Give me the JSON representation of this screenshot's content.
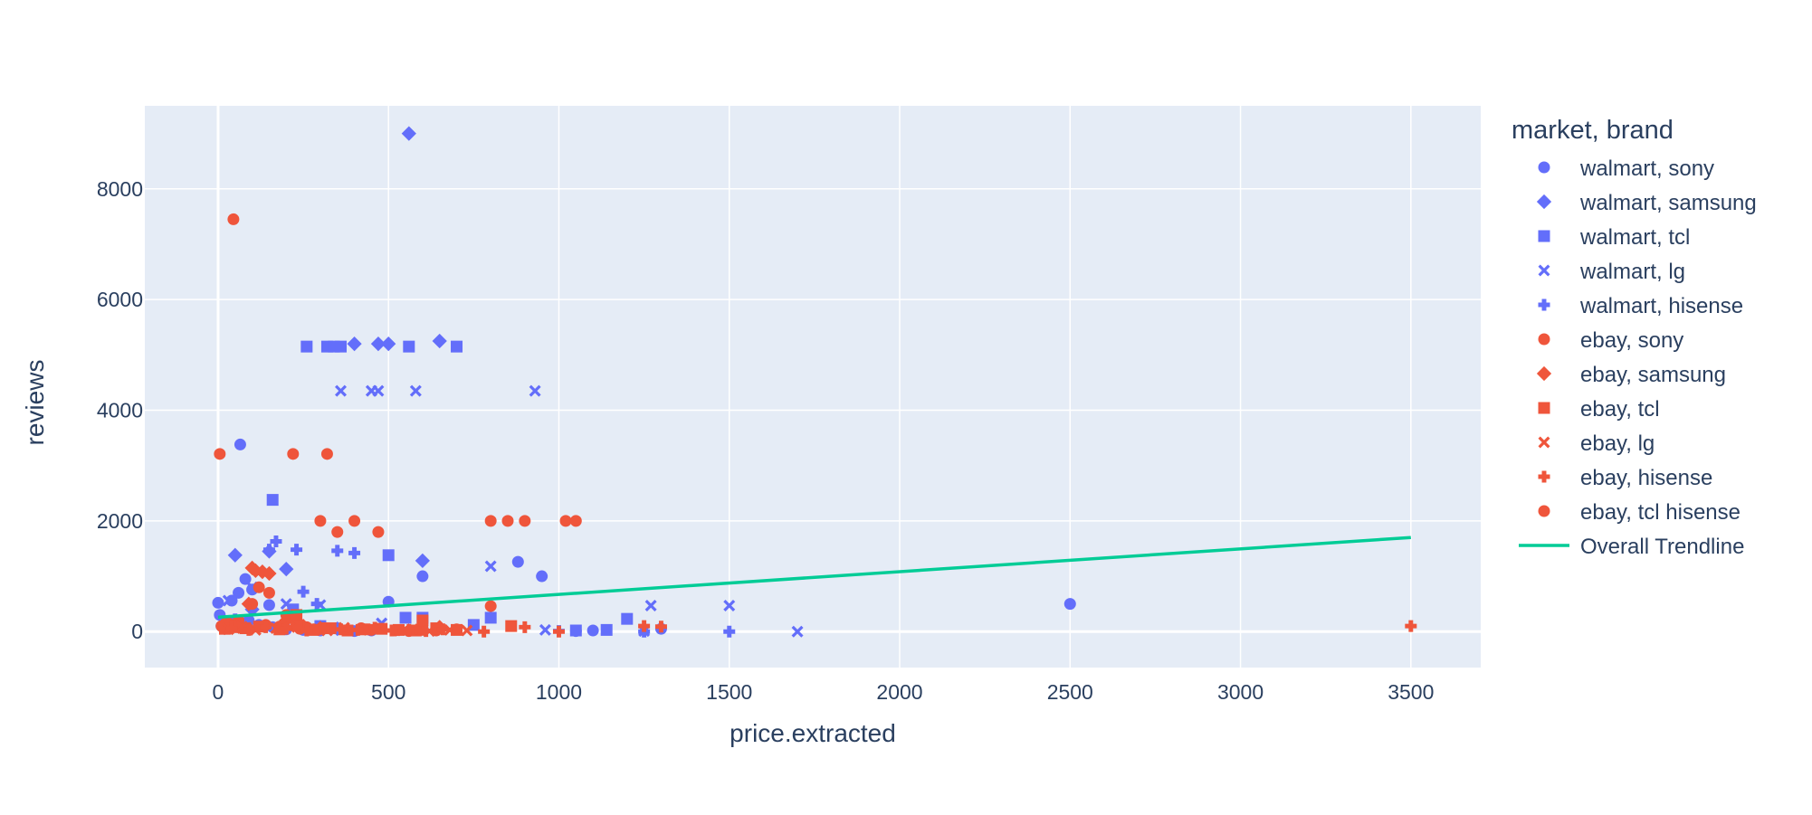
{
  "chart_data": {
    "type": "scatter",
    "title": "",
    "xlabel": "price.extracted",
    "ylabel": "reviews",
    "xlim": [
      -215,
      3705
    ],
    "ylim": [
      -650,
      9500
    ],
    "x_ticks": [
      0,
      500,
      1000,
      1500,
      2000,
      2500,
      3000,
      3500
    ],
    "y_ticks": [
      0,
      2000,
      4000,
      6000,
      8000
    ],
    "grid": true,
    "legend_title": "market, brand",
    "legend_position": "right",
    "colors": {
      "walmart": "#636efa",
      "ebay": "#ef553b",
      "trend": "#00cc96",
      "plot_bg": "#e5ecf6",
      "grid": "#ffffff",
      "text": "#2a3f5f"
    },
    "series": [
      {
        "name": "walmart, sony",
        "symbol": "circle",
        "color": "#636efa",
        "x": [
          0,
          5,
          10,
          20,
          40,
          60,
          65,
          80,
          90,
          100,
          120,
          150,
          160,
          200,
          250,
          300,
          350,
          400,
          450,
          500,
          600,
          880,
          950,
          1050,
          1100,
          1300,
          2500
        ],
        "y": [
          520,
          300,
          100,
          50,
          560,
          700,
          3380,
          950,
          200,
          760,
          120,
          480,
          80,
          40,
          30,
          20,
          60,
          10,
          20,
          540,
          1000,
          1260,
          1000,
          10,
          20,
          50,
          500
        ]
      },
      {
        "name": "walmart, samsung",
        "symbol": "diamond",
        "color": "#636efa",
        "x": [
          50,
          150,
          200,
          400,
          470,
          500,
          560,
          600,
          650,
          100,
          300,
          350
        ],
        "y": [
          1380,
          1450,
          1130,
          5200,
          5200,
          5200,
          9000,
          1280,
          5250,
          400,
          80,
          50
        ]
      },
      {
        "name": "walmart, tcl",
        "symbol": "square",
        "color": "#636efa",
        "x": [
          160,
          260,
          320,
          340,
          360,
          560,
          700,
          500,
          550,
          600,
          750,
          800,
          1200,
          1050,
          1140,
          220,
          300
        ],
        "y": [
          2380,
          5150,
          5150,
          5150,
          5150,
          5150,
          5150,
          1380,
          250,
          250,
          120,
          250,
          230,
          20,
          30,
          400,
          100
        ]
      },
      {
        "name": "walmart, lg",
        "symbol": "x",
        "color": "#636efa",
        "x": [
          360,
          450,
          470,
          580,
          930,
          800,
          1270,
          1500,
          1700,
          1250,
          960,
          30,
          100,
          200,
          300,
          480
        ],
        "y": [
          4350,
          4350,
          4350,
          4350,
          4350,
          1180,
          470,
          470,
          0,
          10,
          30,
          560,
          800,
          500,
          480,
          150
        ]
      },
      {
        "name": "walmart, hisense",
        "symbol": "cross",
        "color": "#636efa",
        "x": [
          150,
          170,
          230,
          250,
          350,
          400,
          290,
          600,
          1000,
          1250,
          1500,
          50,
          80,
          120
        ],
        "y": [
          1480,
          1630,
          1480,
          720,
          1460,
          1420,
          500,
          40,
          10,
          0,
          0,
          220,
          150,
          100
        ]
      },
      {
        "name": "ebay, sony",
        "symbol": "circle",
        "color": "#ef553b",
        "x": [
          5,
          45,
          100,
          120,
          150,
          220,
          300,
          320,
          350,
          400,
          470,
          600,
          800,
          850,
          900,
          1020,
          1050,
          10,
          30,
          60,
          80,
          140,
          180,
          200,
          240,
          260,
          280,
          420,
          450,
          520,
          560,
          640,
          700
        ],
        "y": [
          3210,
          7450,
          500,
          800,
          700,
          3210,
          2000,
          3210,
          1800,
          2000,
          1800,
          30,
          2000,
          2000,
          2000,
          2000,
          2000,
          100,
          150,
          200,
          60,
          120,
          90,
          300,
          50,
          80,
          40,
          60,
          30,
          20,
          10,
          20,
          40
        ]
      },
      {
        "name": "ebay, samsung",
        "symbol": "diamond",
        "color": "#ef553b",
        "x": [
          100,
          110,
          130,
          150,
          90,
          200,
          250,
          300,
          650,
          20,
          60
        ],
        "y": [
          1150,
          1100,
          1080,
          1050,
          500,
          200,
          100,
          60,
          80,
          150,
          90
        ]
      },
      {
        "name": "ebay, tcl",
        "symbol": "square",
        "color": "#ef553b",
        "x": [
          20,
          50,
          80,
          120,
          180,
          230,
          280,
          330,
          380,
          430,
          480,
          530,
          580,
          640,
          700,
          860,
          230,
          600
        ],
        "y": [
          50,
          80,
          60,
          90,
          40,
          120,
          30,
          60,
          20,
          40,
          50,
          30,
          20,
          60,
          30,
          100,
          300,
          200
        ]
      },
      {
        "name": "ebay, lg",
        "symbol": "x",
        "color": "#ef553b",
        "x": [
          30,
          70,
          110,
          170,
          210,
          270,
          320,
          370,
          420,
          470,
          520,
          570,
          620,
          680,
          730
        ],
        "y": [
          40,
          90,
          30,
          60,
          80,
          40,
          20,
          70,
          30,
          50,
          20,
          40,
          10,
          30,
          20
        ]
      },
      {
        "name": "ebay, hisense",
        "symbol": "cross",
        "color": "#ef553b",
        "x": [
          40,
          90,
          140,
          200,
          260,
          310,
          360,
          410,
          460,
          510,
          560,
          610,
          660,
          780,
          900,
          1000,
          1250,
          1300,
          3500
        ],
        "y": [
          60,
          30,
          80,
          50,
          20,
          60,
          40,
          30,
          70,
          20,
          30,
          10,
          40,
          0,
          80,
          0,
          100,
          90,
          100
        ]
      },
      {
        "name": "ebay, tcl hisense",
        "symbol": "circle",
        "color": "#ef553b",
        "x": [
          800
        ],
        "y": [
          460
        ]
      }
    ],
    "trendline": {
      "name": "Overall Trendline",
      "color": "#00cc96",
      "x": [
        0,
        3500
      ],
      "y": [
        260,
        1700
      ]
    }
  }
}
